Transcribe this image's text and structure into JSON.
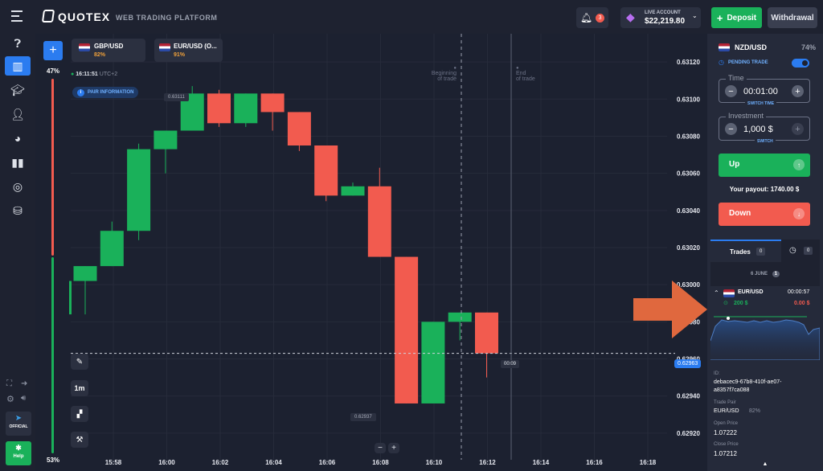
{
  "header": {
    "brand": "QUOTEX",
    "tagline": "WEB TRADING PLATFORM",
    "notifications_count": "3",
    "account_type": "LIVE ACCOUNT",
    "balance": "$22,219.80",
    "deposit_label": "Deposit",
    "withdrawal_label": "Withdrawal"
  },
  "asset_tabs": [
    {
      "name": "GBP/USD",
      "payout": "82%"
    },
    {
      "name": "EUR/USD (O...",
      "payout": "91%"
    }
  ],
  "chart_meta": {
    "clock": "16:11:51",
    "timezone": "UTC+2",
    "pair_info_label": "PAIR INFORMATION",
    "sentiment_up": "47%",
    "sentiment_down": "53%",
    "begin_label_1": "Beginning",
    "begin_label_2": "of trade",
    "end_label_1": "End",
    "end_label_2": "of trade",
    "high_tag": "0.63111",
    "low_tag": "0.62937",
    "price_tag": "0.62963",
    "timer_tag": "00:09",
    "timeframe": "1m"
  },
  "chart_data": {
    "type": "candlestick",
    "x": [
      "15:58",
      "16:00",
      "16:02",
      "16:04",
      "16:06",
      "16:08",
      "16:10",
      "16:12",
      "16:14",
      "16:16",
      "16:18"
    ],
    "y_ticks": [
      "0.63120",
      "0.63100",
      "0.63080",
      "0.63060",
      "0.63040",
      "0.63020",
      "0.63000",
      "0.62980",
      "0.62960",
      "0.62940",
      "0.62920"
    ],
    "ylim": [
      0.6291,
      0.6313
    ],
    "candles": [
      {
        "o": 0.63002,
        "h": 0.6301,
        "l": 0.62984,
        "c": 0.6301
      },
      {
        "o": 0.6301,
        "h": 0.63034,
        "l": 0.6301,
        "c": 0.63029
      },
      {
        "o": 0.63029,
        "h": 0.63076,
        "l": 0.63024,
        "c": 0.63073
      },
      {
        "o": 0.63073,
        "h": 0.63083,
        "l": 0.6306,
        "c": 0.63083
      },
      {
        "o": 0.63083,
        "h": 0.63107,
        "l": 0.63083,
        "c": 0.63103
      },
      {
        "o": 0.63103,
        "h": 0.63105,
        "l": 0.63085,
        "c": 0.63087
      },
      {
        "o": 0.63087,
        "h": 0.63103,
        "l": 0.63085,
        "c": 0.63103
      },
      {
        "o": 0.63103,
        "h": 0.63103,
        "l": 0.63083,
        "c": 0.63093
      },
      {
        "o": 0.63093,
        "h": 0.63093,
        "l": 0.63072,
        "c": 0.63075
      },
      {
        "o": 0.63075,
        "h": 0.63075,
        "l": 0.63045,
        "c": 0.63048
      },
      {
        "o": 0.63048,
        "h": 0.63055,
        "l": 0.63048,
        "c": 0.63053
      },
      {
        "o": 0.63053,
        "h": 0.63063,
        "l": 0.63015,
        "c": 0.63015
      },
      {
        "o": 0.63015,
        "h": 0.63015,
        "l": 0.62936,
        "c": 0.62936
      },
      {
        "o": 0.62936,
        "h": 0.6298,
        "l": 0.62936,
        "c": 0.6298
      },
      {
        "o": 0.6298,
        "h": 0.62985,
        "l": 0.6297,
        "c": 0.62985
      },
      {
        "o": 0.62985,
        "h": 0.62985,
        "l": 0.6295,
        "c": 0.62963
      }
    ]
  },
  "trade_panel": {
    "asset": "NZD/USD",
    "payout": "74%",
    "pending_label": "PENDING TRADE",
    "time_label": "Time",
    "time_value": "00:01:00",
    "switch_time": "SWITCH TIME",
    "investment_label": "Investment",
    "investment_value": "1,000 $",
    "switch_label": "SWITCH",
    "up_label": "Up",
    "payout_label": "Your payout:",
    "payout_value": "1740.00 $",
    "down_label": "Down"
  },
  "trades": {
    "tab_label": "Trades",
    "count": "0",
    "history_count": "0",
    "date": "6 JUNE",
    "date_count": "1",
    "pair": "EUR/USD",
    "timer": "00:00:57",
    "stake": "200 $",
    "result": "0.00 $",
    "id_label": "ID:",
    "id_value_1": "debacec9-67b8-410f-ae07-",
    "id_value_2": "a8357f7ca088",
    "trade_pair_label": "Trade Pair",
    "trade_pair_value": "EUR/USD",
    "trade_pair_pct": "82%",
    "open_price_label": "Open Price",
    "open_price_value": "1.07222",
    "close_price_label": "Close Price",
    "close_price_value": "1.07212"
  },
  "sidebar": {
    "official_label": "OFFICIAL",
    "help_label": "Help"
  }
}
